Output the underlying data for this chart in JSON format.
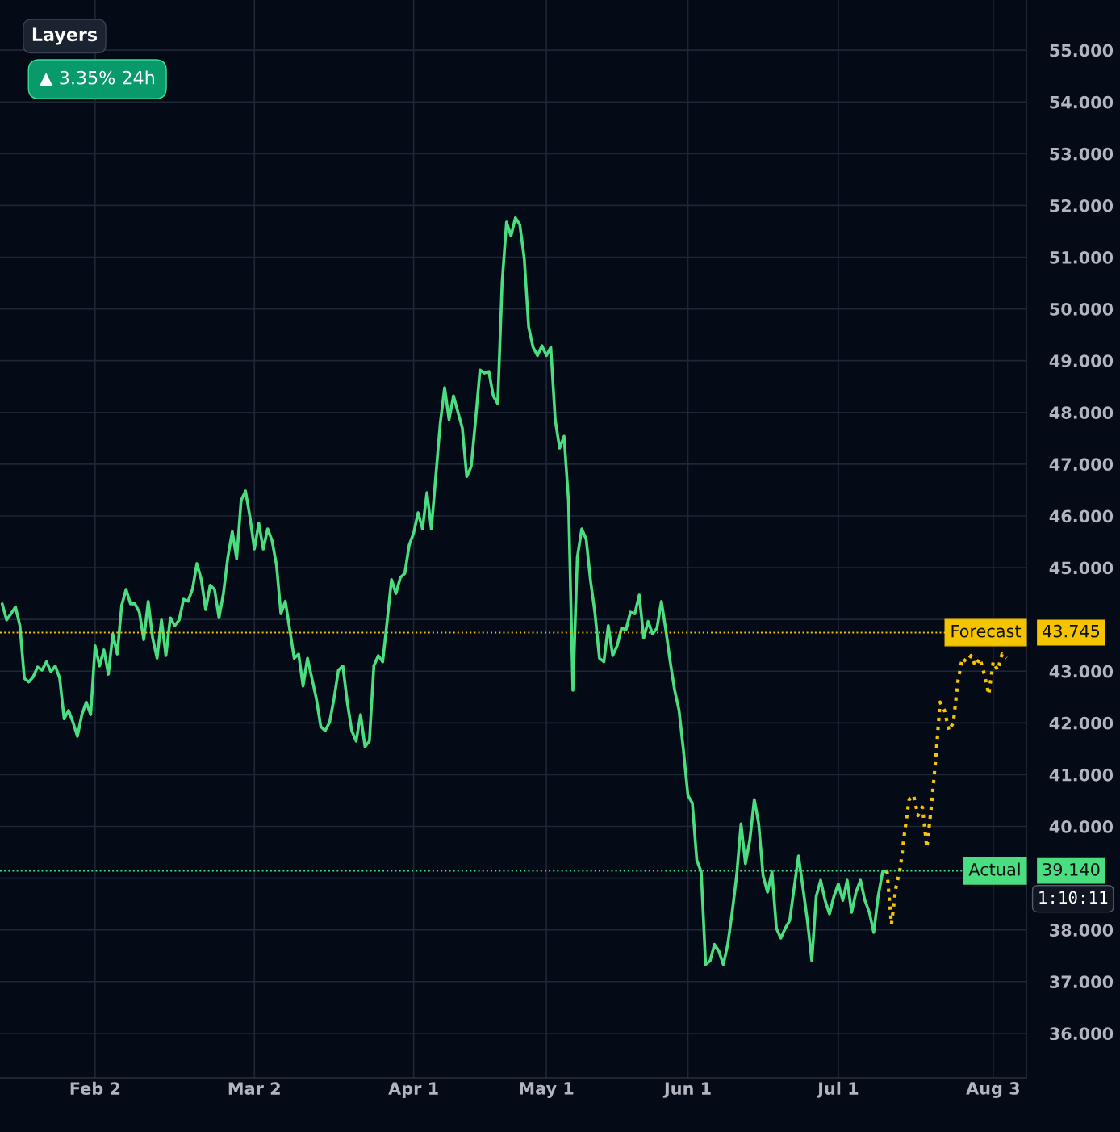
{
  "chart_data": {
    "type": "line",
    "categories": [
      null,
      null,
      null,
      null,
      null,
      null,
      null,
      null,
      null,
      null,
      null,
      null,
      null,
      null,
      null,
      null,
      null,
      null,
      null,
      null,
      null,
      "Feb 2",
      null,
      null,
      null,
      null,
      null,
      null,
      null,
      null,
      null,
      null,
      null,
      null,
      null,
      null,
      null,
      null,
      null,
      null,
      null,
      null,
      null,
      null,
      null,
      null,
      null,
      null,
      null,
      null,
      null,
      null,
      null,
      null,
      null,
      null,
      null,
      "Mar 2",
      null,
      null,
      null,
      null,
      null,
      null,
      null,
      null,
      null,
      null,
      null,
      null,
      null,
      null,
      null,
      null,
      null,
      null,
      null,
      null,
      null,
      null,
      null,
      null,
      null,
      null,
      null,
      null,
      null,
      null,
      null,
      null,
      null,
      null,
      null,
      "Apr 1",
      null,
      null,
      null,
      null,
      null,
      null,
      null,
      null,
      null,
      null,
      null,
      null,
      null,
      null,
      null,
      null,
      null,
      null,
      null,
      null,
      null,
      null,
      null,
      null,
      null,
      null,
      null,
      null,
      null,
      "May 1",
      null,
      null,
      null,
      null,
      null,
      null,
      null,
      null,
      null,
      null,
      null,
      null,
      null,
      null,
      null,
      null,
      null,
      null,
      null,
      null,
      null,
      null,
      null,
      null,
      null,
      null,
      null,
      null,
      null,
      null,
      null,
      "Jun 1",
      null,
      null,
      null,
      null,
      null,
      null,
      null,
      null,
      null,
      null,
      null,
      null,
      null,
      null,
      null,
      null,
      null,
      null,
      null,
      null,
      null,
      null,
      null,
      null,
      null,
      null,
      null,
      null,
      null,
      null,
      null,
      null,
      null,
      "Jul 1",
      null,
      null,
      null,
      null,
      null,
      null,
      null,
      null,
      null,
      null,
      null,
      null,
      null,
      null,
      null,
      null,
      null,
      null,
      null,
      null,
      null,
      null,
      null,
      null,
      null,
      null,
      null,
      null,
      null,
      null,
      null,
      null,
      null,
      null,
      "Aug 3",
      null,
      null,
      null
    ],
    "ylim": [
      35.14,
      55.97
    ],
    "yticks": [
      {
        "value": 36,
        "label": "36.000"
      },
      {
        "value": 37,
        "label": "37.000"
      },
      {
        "value": 38,
        "label": "38.000"
      },
      {
        "value": 39,
        "label": null
      },
      {
        "value": 40,
        "label": "40.000"
      },
      {
        "value": 41,
        "label": "41.000"
      },
      {
        "value": 42,
        "label": "42.000"
      },
      {
        "value": 43,
        "label": "43.000"
      },
      {
        "value": 44,
        "label": null
      },
      {
        "value": 45,
        "label": "45.000"
      },
      {
        "value": 46,
        "label": "46.000"
      },
      {
        "value": 47,
        "label": "47.000"
      },
      {
        "value": 48,
        "label": "48.000"
      },
      {
        "value": 49,
        "label": "49.000"
      },
      {
        "value": 50,
        "label": "50.000"
      },
      {
        "value": 51,
        "label": "51.000"
      },
      {
        "value": 52,
        "label": "52.000"
      },
      {
        "value": 53,
        "label": "53.000"
      },
      {
        "value": 54,
        "label": "54.000"
      },
      {
        "value": 55,
        "label": "55.000"
      }
    ],
    "grid": true,
    "series": [
      {
        "color": "#4ade80",
        "line_style": "solid",
        "values": [
          44.3,
          43.99,
          44.11,
          44.24,
          43.88,
          42.86,
          42.79,
          42.89,
          43.08,
          43.02,
          43.18,
          42.99,
          43.1,
          42.86,
          42.08,
          42.24,
          42.01,
          41.74,
          42.16,
          42.4,
          42.16,
          43.49,
          43.1,
          43.41,
          42.94,
          43.72,
          43.33,
          44.27,
          44.58,
          44.3,
          44.3,
          44.14,
          43.61,
          44.35,
          43.64,
          43.25,
          43.99,
          43.3,
          44.03,
          43.88,
          43.99,
          44.39,
          44.35,
          44.58,
          45.08,
          44.77,
          44.19,
          44.66,
          44.58,
          44.03,
          44.5,
          45.2,
          45.7,
          45.17,
          46.3,
          46.48,
          45.98,
          45.36,
          45.86,
          45.36,
          45.75,
          45.52,
          45.05,
          44.11,
          44.35,
          43.8,
          43.25,
          43.33,
          42.71,
          43.25,
          42.86,
          42.47,
          41.93,
          41.85,
          42.01,
          42.47,
          43.02,
          43.1,
          42.4,
          41.85,
          41.65,
          42.16,
          41.54,
          41.65,
          43.1,
          43.3,
          43.18,
          43.96,
          44.77,
          44.5,
          44.81,
          44.89,
          45.44,
          45.67,
          46.06,
          45.75,
          46.45,
          45.75,
          46.76,
          47.78,
          48.48,
          47.86,
          48.32,
          48.01,
          47.7,
          46.76,
          46.95,
          47.86,
          48.82,
          48.76,
          48.79,
          48.32,
          48.17,
          50.51,
          51.68,
          51.41,
          51.76,
          51.63,
          50.98,
          49.65,
          49.26,
          49.1,
          49.29,
          49.1,
          49.26,
          47.86,
          47.31,
          47.54,
          46.3,
          42.63,
          45.2,
          45.75,
          45.55,
          44.74,
          44.11,
          43.25,
          43.18,
          43.88,
          43.3,
          43.49,
          43.83,
          43.8,
          44.14,
          44.11,
          44.47,
          43.64,
          43.96,
          43.72,
          43.83,
          44.35,
          43.8,
          43.18,
          42.63,
          42.24,
          41.46,
          40.6,
          40.45,
          39.35,
          39.12,
          37.33,
          37.4,
          37.72,
          37.59,
          37.33,
          37.72,
          38.34,
          39.04,
          40.05,
          39.28,
          39.74,
          40.52,
          40.05,
          39.04,
          38.73,
          39.12,
          38.03,
          37.84,
          38.03,
          38.18,
          38.81,
          39.43,
          38.81,
          38.18,
          37.4,
          38.65,
          38.96,
          38.57,
          38.31,
          38.65,
          38.89,
          38.57,
          38.96,
          38.34,
          38.73,
          38.96,
          38.57,
          38.34,
          37.95,
          38.65,
          39.12,
          39.14,
          null,
          null,
          null,
          null,
          null,
          null,
          null,
          null,
          null,
          null,
          null,
          null,
          null,
          null,
          null,
          null,
          null,
          null,
          null,
          null,
          null,
          null,
          null,
          null,
          null,
          null,
          null
        ]
      },
      {
        "color": "#f5c400",
        "line_style": "dotted",
        "values": [
          null,
          null,
          null,
          null,
          null,
          null,
          null,
          null,
          null,
          null,
          null,
          null,
          null,
          null,
          null,
          null,
          null,
          null,
          null,
          null,
          null,
          null,
          null,
          null,
          null,
          null,
          null,
          null,
          null,
          null,
          null,
          null,
          null,
          null,
          null,
          null,
          null,
          null,
          null,
          null,
          null,
          null,
          null,
          null,
          null,
          null,
          null,
          null,
          null,
          null,
          null,
          null,
          null,
          null,
          null,
          null,
          null,
          null,
          null,
          null,
          null,
          null,
          null,
          null,
          null,
          null,
          null,
          null,
          null,
          null,
          null,
          null,
          null,
          null,
          null,
          null,
          null,
          null,
          null,
          null,
          null,
          null,
          null,
          null,
          null,
          null,
          null,
          null,
          null,
          null,
          null,
          null,
          null,
          null,
          null,
          null,
          null,
          null,
          null,
          null,
          null,
          null,
          null,
          null,
          null,
          null,
          null,
          null,
          null,
          null,
          null,
          null,
          null,
          null,
          null,
          null,
          null,
          null,
          null,
          null,
          null,
          null,
          null,
          null,
          null,
          null,
          null,
          null,
          null,
          null,
          null,
          null,
          null,
          null,
          null,
          null,
          null,
          null,
          null,
          null,
          null,
          null,
          null,
          null,
          null,
          null,
          null,
          null,
          null,
          null,
          null,
          null,
          null,
          null,
          null,
          null,
          null,
          null,
          null,
          null,
          null,
          null,
          null,
          null,
          null,
          null,
          null,
          null,
          null,
          null,
          null,
          null,
          null,
          null,
          null,
          null,
          null,
          null,
          null,
          null,
          null,
          null,
          null,
          null,
          null,
          null,
          null,
          null,
          null,
          null,
          null,
          null,
          null,
          null,
          null,
          null,
          null,
          null,
          null,
          null,
          39.14,
          38.11,
          38.81,
          39.2,
          39.9,
          40.52,
          40.6,
          40.21,
          40.37,
          39.59,
          40.37,
          41.3,
          42.4,
          42.24,
          41.85,
          42.01,
          42.79,
          43.25,
          43.18,
          43.3,
          43.1,
          43.25,
          42.94,
          42.55,
          43.18,
          43.02,
          43.33,
          43.25
        ]
      }
    ],
    "ref_lines": [
      {
        "axis": "y",
        "value": 43.745,
        "label": "Forecast",
        "color": "#f5c400",
        "line_style": "dotted"
      },
      {
        "axis": "y",
        "value": 39.14,
        "label": "Actual",
        "color": "#4ade80",
        "line_style": "dotted"
      }
    ],
    "annotations": [
      "Layers",
      "▲ 3.35% 24h",
      "1:10:11",
      "43.745",
      "39.140"
    ]
  }
}
